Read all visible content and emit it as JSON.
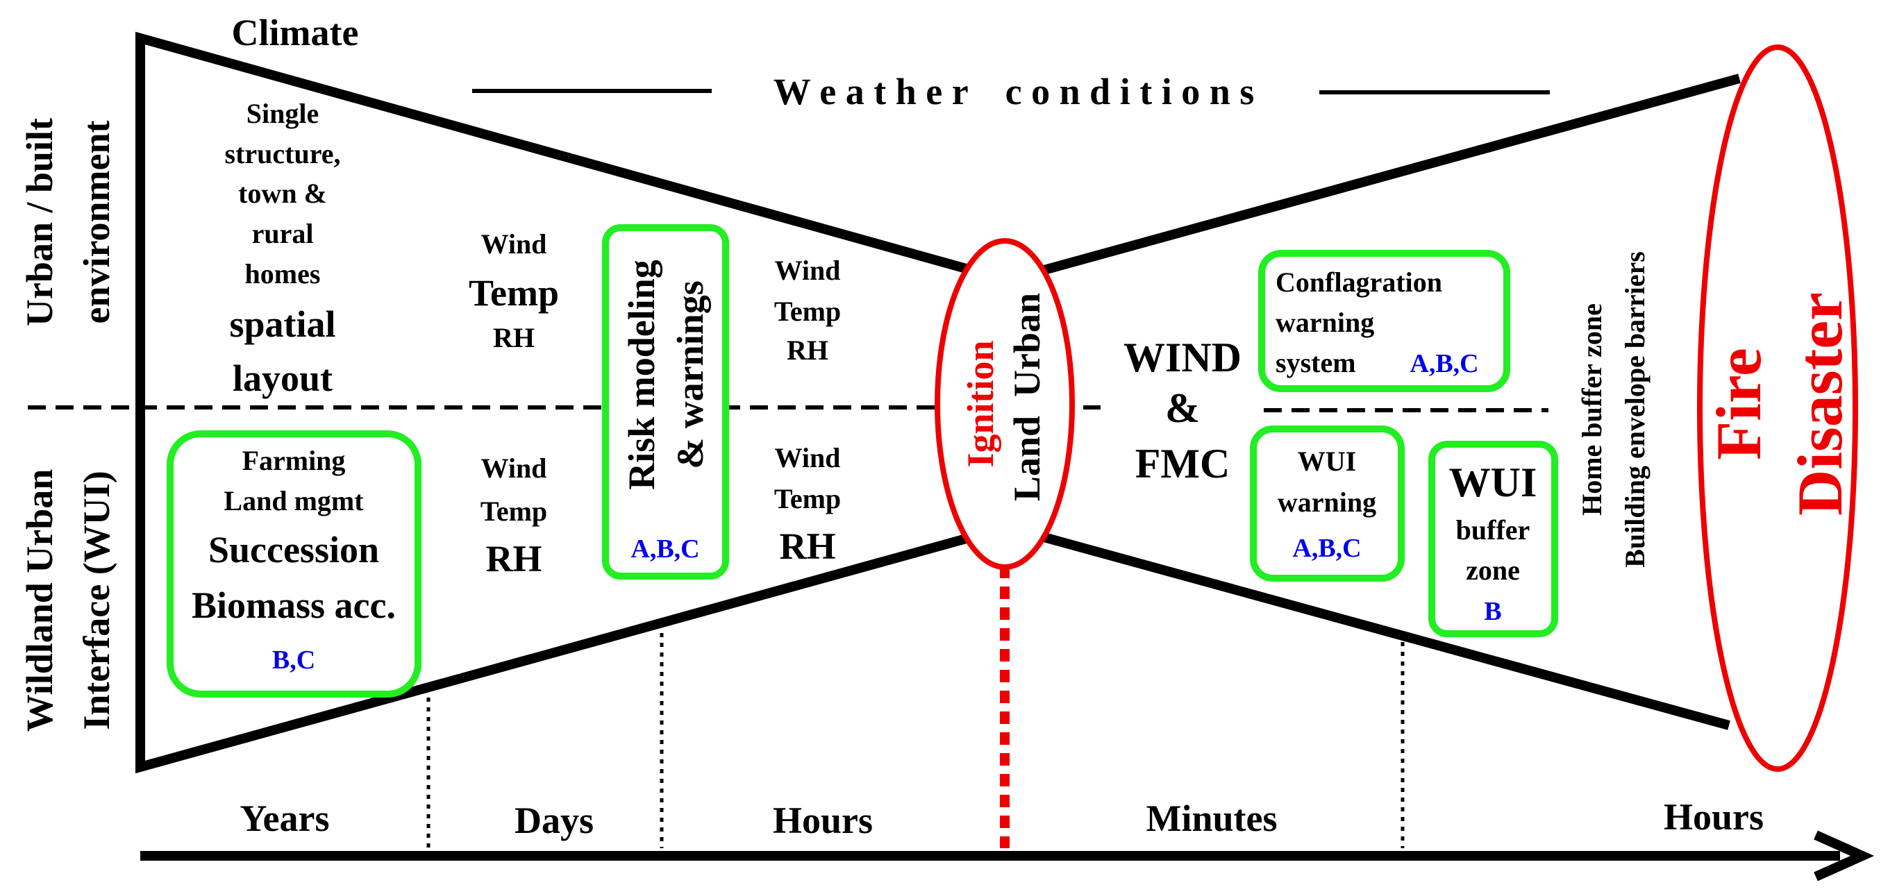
{
  "top_title": "Climate",
  "weather_label": "W e a t h e r    c o n d i t i o n s",
  "side_labels": {
    "urban_line1": "Urban / built",
    "urban_line2": "environment",
    "wui_line1": "Wildland Urban",
    "wui_line2": "Interface (WUI)"
  },
  "years_upper": {
    "line1": "Single",
    "line2": "structure,",
    "line3": "town &",
    "line4": "rural",
    "line5": "homes",
    "line6": "spatial",
    "line7": "layout"
  },
  "years_lower_box": {
    "line1": "Farming",
    "line2": "Land mgmt",
    "line3": "Succession",
    "line4": "Biomass acc.",
    "tag": "B,C"
  },
  "days_upper": {
    "wind": "Wind",
    "temp": "Temp",
    "rh": "RH"
  },
  "days_lower": {
    "wind": "Wind",
    "temp": "Temp",
    "rh": "RH"
  },
  "risk_box": {
    "line1": "Risk modeling",
    "line2": "& warnings",
    "tag": "A,B,C"
  },
  "hours_upper": {
    "wind": "Wind",
    "temp": "Temp",
    "rh": "RH"
  },
  "hours_lower": {
    "wind": "Wind",
    "temp": "Temp",
    "rh": "RH"
  },
  "ignition": {
    "label": "Ignition",
    "sub": "Land  Urban"
  },
  "wind_fmc": {
    "line1": "WIND",
    "line2": "&",
    "line3": "FMC"
  },
  "conflagration_box": {
    "line1": "Conflagration",
    "line2": "warning",
    "line3": "system",
    "tag": "A,B,C"
  },
  "wui_warning_box": {
    "line1": "WUI",
    "line2": "warning",
    "tag": "A,B,C"
  },
  "wui_buffer_box": {
    "line1": "WUI",
    "line2": "buffer",
    "line3": "zone",
    "tag": "B"
  },
  "home_buffer": {
    "line1": "Home buffer zone",
    "line2": "Building envelope barriers"
  },
  "fire_disaster": {
    "line1": "Fire",
    "line2": "Disaster"
  },
  "timeline": {
    "years": "Years",
    "days": "Days",
    "hours": "Hours",
    "minutes": "Minutes",
    "hours_after": "Hours"
  },
  "colors": {
    "box_green": "#22ee22",
    "tag_blue": "#0000ee",
    "fire_red": "#ee0000",
    "line_black": "#000000"
  }
}
